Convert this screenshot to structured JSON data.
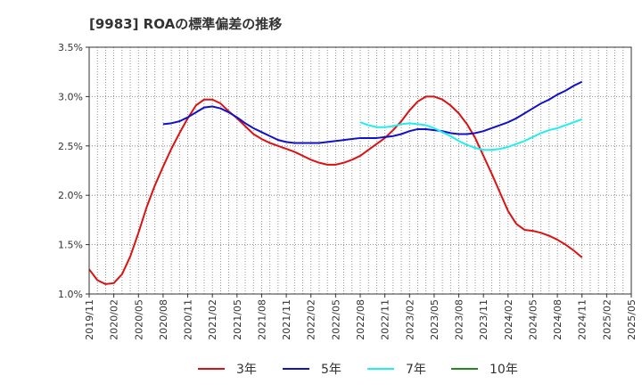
{
  "chart_data": {
    "type": "line",
    "title": "[9983]  ROAの標準偏差の推移",
    "xlabel": "",
    "ylabel": "",
    "ylim": [
      1.0,
      3.5
    ],
    "y_ticks": [
      "3.5%",
      "3.0%",
      "2.5%",
      "2.0%",
      "1.5%",
      "1.0%"
    ],
    "y_tick_values": [
      3.5,
      3.0,
      2.5,
      2.0,
      1.5,
      1.0
    ],
    "x_ticks": [
      "2019/11",
      "2020/02",
      "2020/05",
      "2020/08",
      "2020/11",
      "2021/02",
      "2021/05",
      "2021/08",
      "2021/11",
      "2022/02",
      "2022/05",
      "2022/08",
      "2022/11",
      "2023/02",
      "2023/05",
      "2023/08",
      "2023/11",
      "2024/02",
      "2024/05",
      "2024/08",
      "2024/11",
      "2025/02",
      "2025/05"
    ],
    "grid": true,
    "legend_position": "bottom",
    "series": [
      {
        "name": "3年",
        "color": "#dd1111",
        "points": [
          [
            "2019/11",
            1.25
          ],
          [
            "2019/12",
            1.14
          ],
          [
            "2020/01",
            1.1
          ],
          [
            "2020/02",
            1.11
          ],
          [
            "2020/03",
            1.2
          ],
          [
            "2020/04",
            1.38
          ],
          [
            "2020/05",
            1.62
          ],
          [
            "2020/06",
            1.88
          ],
          [
            "2020/07",
            2.1
          ],
          [
            "2020/08",
            2.29
          ],
          [
            "2020/09",
            2.47
          ],
          [
            "2020/10",
            2.63
          ],
          [
            "2020/11",
            2.78
          ],
          [
            "2020/12",
            2.91
          ],
          [
            "2021/01",
            2.97
          ],
          [
            "2021/02",
            2.97
          ],
          [
            "2021/03",
            2.93
          ],
          [
            "2021/04",
            2.85
          ],
          [
            "2021/05",
            2.78
          ],
          [
            "2021/06",
            2.7
          ],
          [
            "2021/07",
            2.62
          ],
          [
            "2021/08",
            2.57
          ],
          [
            "2021/09",
            2.53
          ],
          [
            "2021/10",
            2.5
          ],
          [
            "2021/11",
            2.47
          ],
          [
            "2021/12",
            2.44
          ],
          [
            "2022/01",
            2.4
          ],
          [
            "2022/02",
            2.36
          ],
          [
            "2022/03",
            2.33
          ],
          [
            "2022/04",
            2.31
          ],
          [
            "2022/05",
            2.31
          ],
          [
            "2022/06",
            2.33
          ],
          [
            "2022/07",
            2.36
          ],
          [
            "2022/08",
            2.4
          ],
          [
            "2022/09",
            2.46
          ],
          [
            "2022/10",
            2.52
          ],
          [
            "2022/11",
            2.58
          ],
          [
            "2022/12",
            2.66
          ],
          [
            "2023/01",
            2.75
          ],
          [
            "2023/02",
            2.86
          ],
          [
            "2023/03",
            2.95
          ],
          [
            "2023/04",
            3.0
          ],
          [
            "2023/05",
            3.0
          ],
          [
            "2023/06",
            2.97
          ],
          [
            "2023/07",
            2.91
          ],
          [
            "2023/08",
            2.83
          ],
          [
            "2023/09",
            2.72
          ],
          [
            "2023/10",
            2.58
          ],
          [
            "2023/11",
            2.4
          ],
          [
            "2023/12",
            2.22
          ],
          [
            "2024/01",
            2.03
          ],
          [
            "2024/02",
            1.84
          ],
          [
            "2024/03",
            1.71
          ],
          [
            "2024/04",
            1.65
          ],
          [
            "2024/05",
            1.64
          ],
          [
            "2024/06",
            1.62
          ],
          [
            "2024/07",
            1.59
          ],
          [
            "2024/08",
            1.55
          ],
          [
            "2024/09",
            1.5
          ],
          [
            "2024/10",
            1.44
          ],
          [
            "2024/11",
            1.37
          ]
        ]
      },
      {
        "name": "5年",
        "color": "#1111cc",
        "points": [
          [
            "2020/08",
            2.72
          ],
          [
            "2020/09",
            2.73
          ],
          [
            "2020/10",
            2.75
          ],
          [
            "2020/11",
            2.79
          ],
          [
            "2020/12",
            2.84
          ],
          [
            "2021/01",
            2.89
          ],
          [
            "2021/02",
            2.9
          ],
          [
            "2021/03",
            2.88
          ],
          [
            "2021/04",
            2.84
          ],
          [
            "2021/05",
            2.79
          ],
          [
            "2021/06",
            2.73
          ],
          [
            "2021/07",
            2.68
          ],
          [
            "2021/08",
            2.64
          ],
          [
            "2021/09",
            2.6
          ],
          [
            "2021/10",
            2.56
          ],
          [
            "2021/11",
            2.54
          ],
          [
            "2021/12",
            2.53
          ],
          [
            "2022/01",
            2.53
          ],
          [
            "2022/02",
            2.53
          ],
          [
            "2022/03",
            2.53
          ],
          [
            "2022/04",
            2.54
          ],
          [
            "2022/05",
            2.55
          ],
          [
            "2022/06",
            2.56
          ],
          [
            "2022/07",
            2.57
          ],
          [
            "2022/08",
            2.58
          ],
          [
            "2022/09",
            2.58
          ],
          [
            "2022/10",
            2.58
          ],
          [
            "2022/11",
            2.59
          ],
          [
            "2022/12",
            2.6
          ],
          [
            "2023/01",
            2.62
          ],
          [
            "2023/02",
            2.65
          ],
          [
            "2023/03",
            2.67
          ],
          [
            "2023/04",
            2.67
          ],
          [
            "2023/05",
            2.66
          ],
          [
            "2023/06",
            2.65
          ],
          [
            "2023/07",
            2.63
          ],
          [
            "2023/08",
            2.62
          ],
          [
            "2023/09",
            2.62
          ],
          [
            "2023/10",
            2.63
          ],
          [
            "2023/11",
            2.65
          ],
          [
            "2023/12",
            2.68
          ],
          [
            "2024/01",
            2.71
          ],
          [
            "2024/02",
            2.74
          ],
          [
            "2024/03",
            2.78
          ],
          [
            "2024/04",
            2.83
          ],
          [
            "2024/05",
            2.88
          ],
          [
            "2024/06",
            2.93
          ],
          [
            "2024/07",
            2.97
          ],
          [
            "2024/08",
            3.02
          ],
          [
            "2024/09",
            3.06
          ],
          [
            "2024/10",
            3.11
          ],
          [
            "2024/11",
            3.15
          ]
        ]
      },
      {
        "name": "7年",
        "color": "#22eeee",
        "points": [
          [
            "2022/08",
            2.74
          ],
          [
            "2022/09",
            2.71
          ],
          [
            "2022/10",
            2.69
          ],
          [
            "2022/11",
            2.69
          ],
          [
            "2022/12",
            2.7
          ],
          [
            "2023/01",
            2.72
          ],
          [
            "2023/02",
            2.73
          ],
          [
            "2023/03",
            2.72
          ],
          [
            "2023/04",
            2.71
          ],
          [
            "2023/05",
            2.68
          ],
          [
            "2023/06",
            2.64
          ],
          [
            "2023/07",
            2.6
          ],
          [
            "2023/08",
            2.55
          ],
          [
            "2023/09",
            2.51
          ],
          [
            "2023/10",
            2.48
          ],
          [
            "2023/11",
            2.46
          ],
          [
            "2023/12",
            2.46
          ],
          [
            "2024/01",
            2.47
          ],
          [
            "2024/02",
            2.49
          ],
          [
            "2024/03",
            2.52
          ],
          [
            "2024/04",
            2.55
          ],
          [
            "2024/05",
            2.59
          ],
          [
            "2024/06",
            2.63
          ],
          [
            "2024/07",
            2.66
          ],
          [
            "2024/08",
            2.68
          ],
          [
            "2024/09",
            2.71
          ],
          [
            "2024/10",
            2.74
          ],
          [
            "2024/11",
            2.77
          ]
        ]
      },
      {
        "name": "10年",
        "color": "#228822",
        "points": []
      }
    ]
  }
}
